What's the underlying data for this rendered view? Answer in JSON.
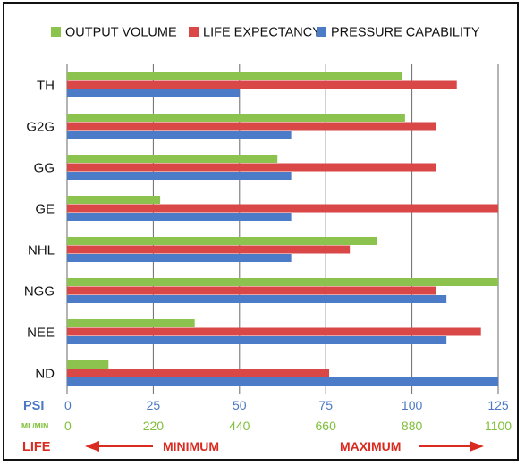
{
  "chart_data": {
    "type": "bar",
    "orientation": "horizontal",
    "categories": [
      "TH",
      "G2G",
      "GG",
      "GE",
      "NHL",
      "NGG",
      "NEE",
      "ND"
    ],
    "series": [
      {
        "name": "OUTPUT VOLUME",
        "color": "#8cc34f",
        "values": [
          97,
          98,
          61,
          27,
          90,
          125,
          37,
          12
        ]
      },
      {
        "name": "LIFE EXPECTANCY",
        "color": "#d94747",
        "values": [
          113,
          107,
          107,
          125,
          82,
          107,
          120,
          76
        ]
      },
      {
        "name": "PRESSURE CAPABILITY",
        "color": "#4c7cc8",
        "values": [
          50,
          65,
          65,
          65,
          65,
          110,
          110,
          125
        ]
      }
    ],
    "xlim": [
      0,
      125
    ],
    "grid": true,
    "legend_position": "top",
    "axes": {
      "psi": {
        "label": "PSI",
        "color": "#4a78c4",
        "ticks": [
          "0",
          "25",
          "50",
          "75",
          "100",
          "125"
        ]
      },
      "ml_min": {
        "label": "ML/MIN",
        "color": "#7fbf3a",
        "ticks": [
          "0",
          "220",
          "440",
          "660",
          "880",
          "1100"
        ]
      },
      "life": {
        "label": "LIFE",
        "color": "#d92b20",
        "min_label": "MINIMUM",
        "max_label": "MAXIMUM"
      }
    }
  }
}
